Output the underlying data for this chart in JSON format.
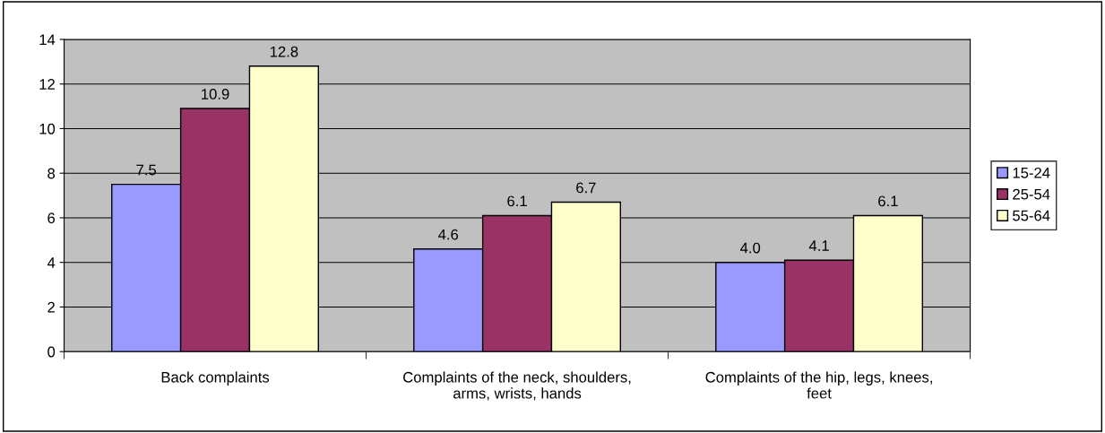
{
  "chart_data": {
    "type": "bar",
    "categories": [
      "Back complaints",
      "Complaints of the neck, shoulders,\narms, wrists, hands",
      "Complaints of the hip, legs, knees,\nfeet"
    ],
    "series": [
      {
        "name": "15-24",
        "color": "#9999ff",
        "values": [
          7.5,
          4.6,
          4.0
        ],
        "value_labels": [
          "7.5",
          "4.6",
          "4.0"
        ]
      },
      {
        "name": "25-54",
        "color": "#993366",
        "values": [
          10.9,
          6.1,
          4.1
        ],
        "value_labels": [
          "10.9",
          "6.1",
          "4.1"
        ]
      },
      {
        "name": "55-64",
        "color": "#ffffcc",
        "values": [
          12.8,
          6.7,
          6.1
        ],
        "value_labels": [
          "12.8",
          "6.7",
          "6.1"
        ]
      }
    ],
    "ylim": [
      0,
      14
    ],
    "yticks": [
      0,
      2,
      4,
      6,
      8,
      10,
      12,
      14
    ],
    "grid": "y",
    "legend": "right"
  }
}
